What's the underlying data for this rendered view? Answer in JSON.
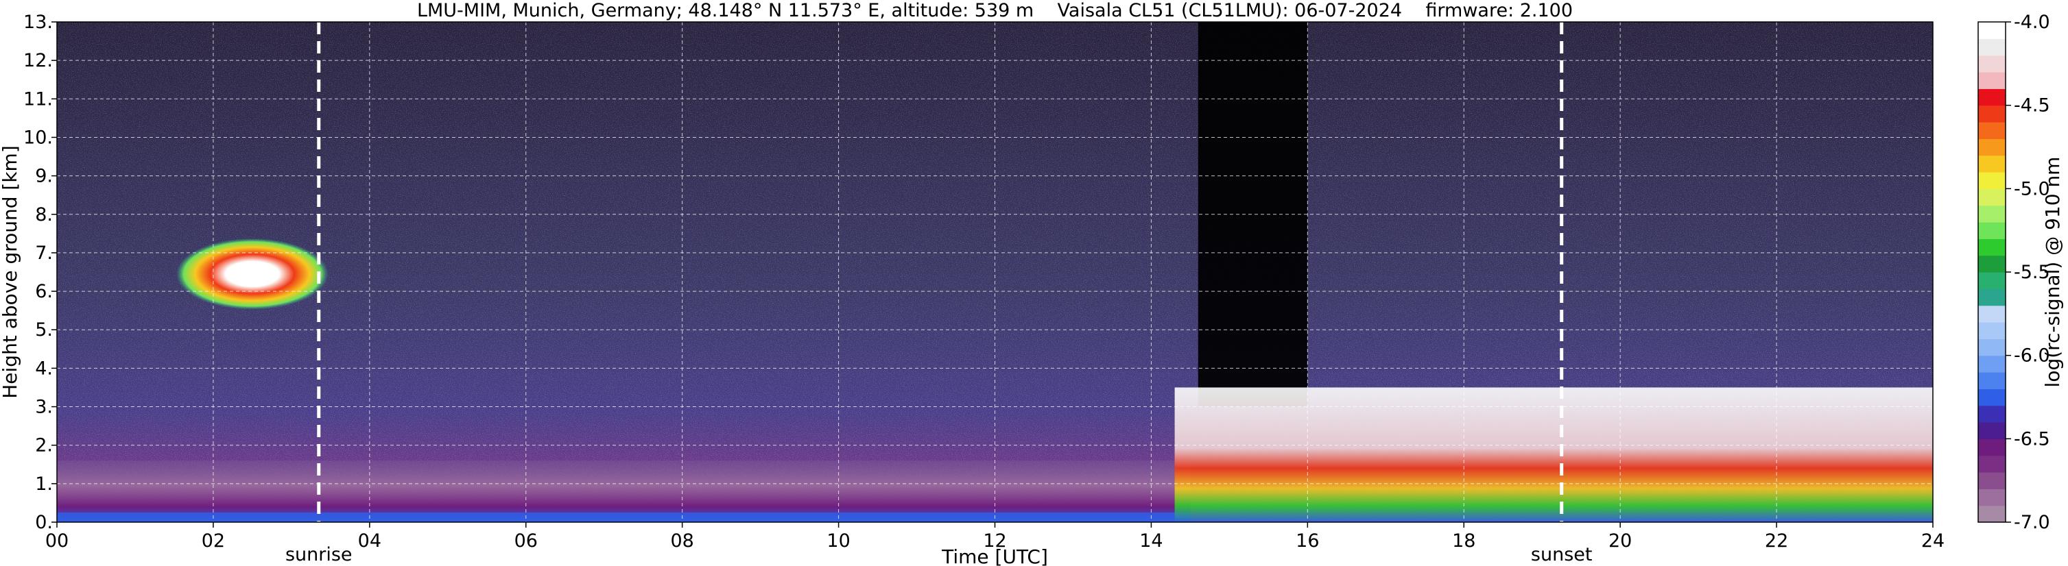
{
  "chart_data": {
    "type": "heatmap",
    "title": "LMU-MIM, Munich, Germany; 48.148° N 11.573° E, altitude: 539 m    Vaisala CL51 (CL51LMU): 06-07-2024    firmware: 2.100",
    "xlabel": "Time [UTC]",
    "ylabel": "Height above ground [km]",
    "xlim": [
      0,
      24
    ],
    "ylim": [
      0,
      13
    ],
    "x_ticks": [
      "00",
      "02",
      "04",
      "06",
      "08",
      "10",
      "12",
      "14",
      "16",
      "18",
      "20",
      "22",
      "24"
    ],
    "y_ticks": [
      "0.",
      "1.",
      "2.",
      "3.",
      "4.",
      "5.",
      "6.",
      "7.",
      "8.",
      "9.",
      "10.",
      "11.",
      "12.",
      "13."
    ],
    "grid": true,
    "colorbar": {
      "label": "log(rc-signal) @ 910 nm",
      "range": [
        -7.0,
        -4.0
      ],
      "ticks": [
        "-7.0",
        "-6.5",
        "-6.0",
        "-5.5",
        "-5.0",
        "-4.5",
        "-4.0"
      ],
      "colors": [
        "#a68aa6",
        "#9c6f9f",
        "#8a4e8e",
        "#7a2f84",
        "#6e1d7e",
        "#4b1d8f",
        "#3a2fb5",
        "#2f5fe6",
        "#4c82f0",
        "#6f9ff3",
        "#8fb8f5",
        "#a8c8f7",
        "#c3d7f7",
        "#2aa58e",
        "#28b070",
        "#1e9e3a",
        "#2ecb2e",
        "#6fe35a",
        "#a6ef6b",
        "#d8f25e",
        "#f2ef3b",
        "#f7c820",
        "#f79a1c",
        "#f56a1a",
        "#ef3a17",
        "#e8101a",
        "#f2b8bd",
        "#f2d6d7",
        "#ececec",
        "#ffffff"
      ]
    },
    "annotations": [
      {
        "text": "sunrise",
        "x": 3.35
      },
      {
        "text": "sunset",
        "x": 19.25
      }
    ],
    "features": {
      "boundary_layer": {
        "x_range": [
          0,
          14.5
        ],
        "top_km": 1.6,
        "dominant_value": -6.6
      },
      "cloud_layer_morning": {
        "x_range": [
          1.7,
          3.3
        ],
        "height_km": [
          5.7,
          7.2
        ],
        "peak_value": -4.0
      },
      "convective_clouds_afternoon": {
        "x_range": [
          14.3,
          24
        ],
        "base_km": [
          1.8,
          3.5
        ],
        "peak_value": -4.0
      },
      "signal_extinction_region": {
        "x_range": [
          14.6,
          16.0
        ],
        "height_km": [
          3.0,
          13.0
        ]
      }
    }
  }
}
